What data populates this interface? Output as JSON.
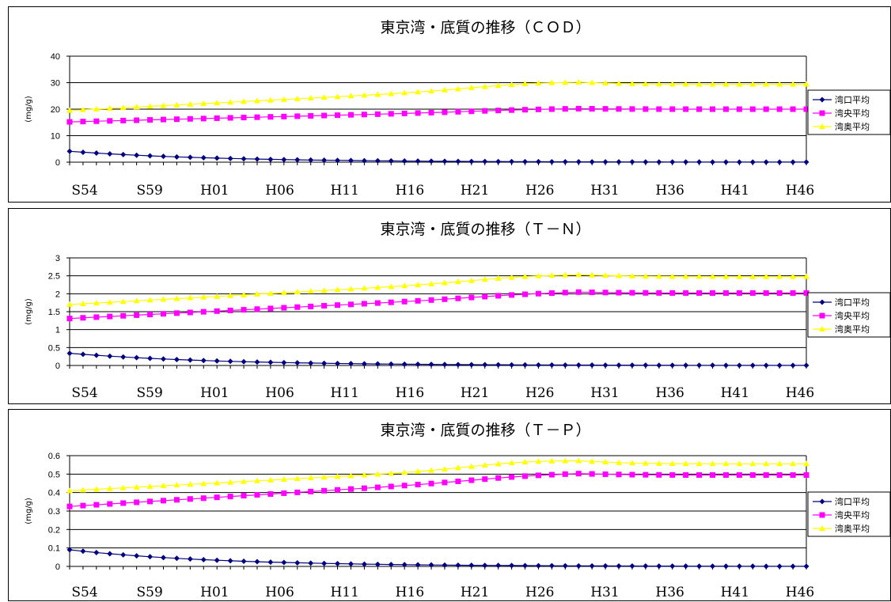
{
  "chart_data": [
    {
      "type": "line",
      "title": "東京湾・底質の推移（ＣＯＤ）",
      "ylabel": "(mg/g)",
      "ylim": [
        0,
        40
      ],
      "yticks": [
        "0",
        "10",
        "20",
        "30",
        "40"
      ],
      "xtick_labels": [
        "S54",
        "S59",
        "H01",
        "H06",
        "H11",
        "H16",
        "H21",
        "H26",
        "H31",
        "H36",
        "H41",
        "H46"
      ],
      "grid": "horizontal",
      "legend_position": "right",
      "series": [
        {
          "name": "湾口平均",
          "color": "#000080",
          "marker": "diamond",
          "start": 4.1,
          "end": 0.0,
          "decay": 0.09,
          "wave_amp": 0
        },
        {
          "name": "湾央平均",
          "color": "#ff00ff",
          "marker": "square",
          "start": 15.2,
          "end": 20.0,
          "plateau_at": 38,
          "wave_amp": 0.3
        },
        {
          "name": "湾奥平均",
          "color": "#ffff00",
          "marker": "triangle",
          "start": 19.5,
          "end": 29.4,
          "plateau_at": 38,
          "wave_amp": 1.2
        }
      ]
    },
    {
      "type": "line",
      "title": "東京湾・底質の推移（Ｔ－Ｎ）",
      "ylabel": "(mg/g)",
      "ylim": [
        0,
        3
      ],
      "yticks": [
        "0",
        "0.5",
        "1",
        "1.5",
        "2",
        "2.5",
        "3"
      ],
      "xtick_labels": [
        "S54",
        "S59",
        "H01",
        "H06",
        "H11",
        "H16",
        "H21",
        "H26",
        "H31",
        "H36",
        "H41",
        "H46"
      ],
      "grid": "horizontal",
      "legend_position": "right",
      "series": [
        {
          "name": "湾口平均",
          "color": "#000080",
          "marker": "diamond",
          "start": 0.34,
          "end": 0.0,
          "decay": 0.09,
          "wave_amp": 0
        },
        {
          "name": "湾央平均",
          "color": "#ff00ff",
          "marker": "square",
          "start": 1.31,
          "end": 2.02,
          "plateau_at": 38,
          "wave_amp": 0.04
        },
        {
          "name": "湾奥平均",
          "color": "#ffff00",
          "marker": "triangle",
          "start": 1.7,
          "end": 2.48,
          "plateau_at": 38,
          "wave_amp": 0.08
        }
      ]
    },
    {
      "type": "line",
      "title": "東京湾・底質の推移（Ｔ－Ｐ）",
      "ylabel": "(mg/g)",
      "ylim": [
        0,
        0.6
      ],
      "yticks": [
        "0",
        "0.1",
        "0.2",
        "0.3",
        "0.4",
        "0.5",
        "0.6"
      ],
      "xtick_labels": [
        "S54",
        "S59",
        "H01",
        "H06",
        "H11",
        "H16",
        "H21",
        "H26",
        "H31",
        "H36",
        "H41",
        "H46"
      ],
      "grid": "horizontal",
      "legend_position": "right",
      "series": [
        {
          "name": "湾口平均",
          "color": "#000080",
          "marker": "diamond",
          "start": 0.09,
          "end": 0.0,
          "decay": 0.09,
          "wave_amp": 0
        },
        {
          "name": "湾央平均",
          "color": "#ff00ff",
          "marker": "square",
          "start": 0.325,
          "end": 0.495,
          "plateau_at": 38,
          "wave_amp": 0.012
        },
        {
          "name": "湾奥平均",
          "color": "#ffff00",
          "marker": "triangle",
          "start": 0.41,
          "end": 0.556,
          "plateau_at": 38,
          "wave_amp": 0.025
        }
      ]
    }
  ]
}
